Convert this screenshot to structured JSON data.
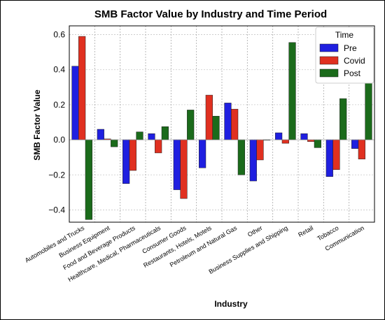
{
  "chart_data": {
    "type": "bar",
    "title": "SMB Factor Value by Industry and Time Period",
    "xlabel": "Industry",
    "ylabel": "SMB Factor Value",
    "ylim": [
      -0.47,
      0.65
    ],
    "yticks": [
      -0.4,
      -0.2,
      0.0,
      0.2,
      0.4,
      0.6
    ],
    "ytick_labels": [
      "−0.4",
      "−0.2",
      "0.0",
      "0.2",
      "0.4",
      "0.6"
    ],
    "grid": true,
    "legend_title": "Time",
    "legend_position": "top-right",
    "categories": [
      "Automobiles and Trucks",
      "Business Equipment",
      "Food and Beverage Products",
      "Healthcare, Medical, Pharmaceuticals",
      "Consumer Goods",
      "Restaurants, Hotels, Motels",
      "Petroleum and Natural Gas",
      "Other",
      "Business Supplies and Shipping",
      "Retail",
      "Tobacco",
      "Communication"
    ],
    "series": [
      {
        "name": "Pre",
        "color": "#1f1fe0",
        "values": [
          0.42,
          0.06,
          -0.25,
          0.035,
          -0.285,
          -0.16,
          0.21,
          -0.235,
          0.04,
          0.035,
          -0.21,
          -0.05
        ]
      },
      {
        "name": "Covid",
        "color": "#e03020",
        "values": [
          0.59,
          0.005,
          -0.175,
          -0.075,
          -0.335,
          0.255,
          0.175,
          -0.115,
          -0.02,
          -0.01,
          -0.17,
          -0.11
        ]
      },
      {
        "name": "Post",
        "color": "#1b6b1b",
        "values": [
          -0.455,
          -0.04,
          0.045,
          0.075,
          0.17,
          0.135,
          -0.2,
          0.0,
          0.555,
          -0.045,
          0.235,
          0.34
        ]
      }
    ]
  }
}
